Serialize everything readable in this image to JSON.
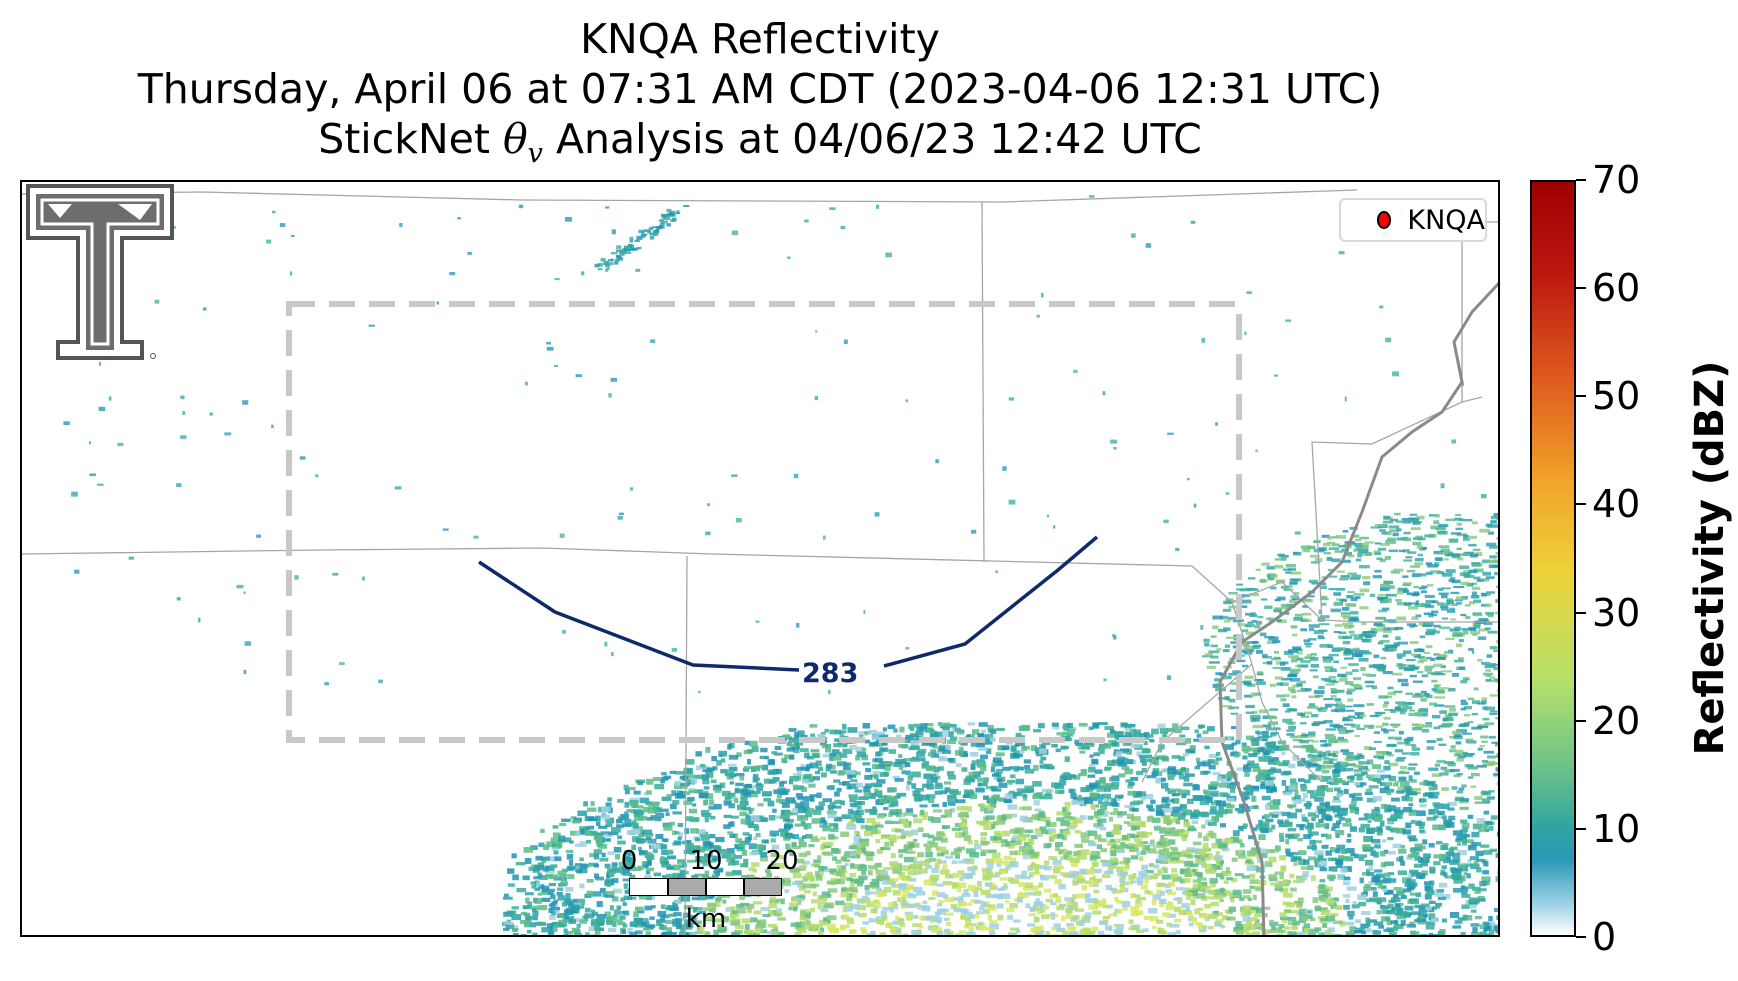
{
  "title": {
    "line1": "KNQA Reflectivity",
    "line2": "Thursday, April 06 at 07:31 AM CDT (2023-04-06 12:31 UTC)",
    "line3_prefix": "StickNet ",
    "line3_symbol": "θ",
    "line3_sub": "v",
    "line3_suffix": " Analysis at 04/06/23 12:42 UTC"
  },
  "legend": {
    "label": "KNQA",
    "marker_color": "#ff0000"
  },
  "contour": {
    "label": "283",
    "color": "#0f2a6b"
  },
  "scale_bar": {
    "ticks": [
      "0",
      "10",
      "20"
    ],
    "unit": "km"
  },
  "colorbar": {
    "title": "Reflectivity (dBZ)",
    "ticks": [
      "70",
      "60",
      "50",
      "40",
      "30",
      "20",
      "10",
      "0"
    ],
    "range": [
      0,
      70
    ]
  },
  "colors": {
    "domain_box": "#c8c8c8",
    "state_border": "#999999",
    "river": "#8a8a8a"
  }
}
